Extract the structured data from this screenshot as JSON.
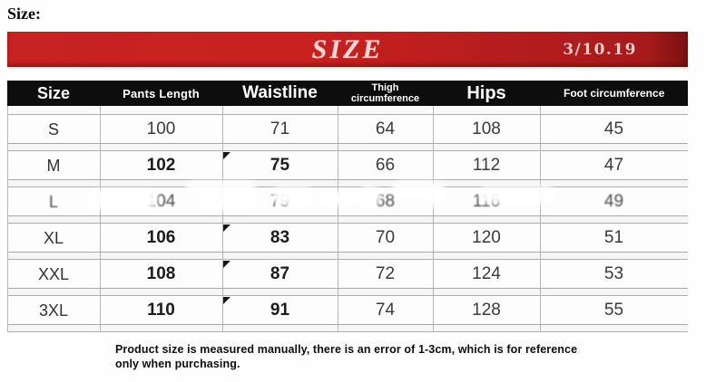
{
  "page": {
    "label": "Size:"
  },
  "banner": {
    "title": "SIZE",
    "date": "3/10.19",
    "bg_color": "#c42020",
    "title_color": "#f3d8d6"
  },
  "table": {
    "columns": [
      "Size",
      "Pants Length",
      "Waistline",
      "Thigh circumference",
      "Hips",
      "Foot circumference"
    ],
    "rows": [
      {
        "size": "S",
        "values": [
          "100",
          "71",
          "64",
          "108",
          "45"
        ],
        "emphasis": false,
        "comment_marker": false,
        "smudged": false
      },
      {
        "size": "M",
        "values": [
          "102",
          "75",
          "66",
          "112",
          "47"
        ],
        "emphasis": true,
        "comment_marker": true,
        "smudged": false
      },
      {
        "size": "L",
        "values": [
          "104",
          "79",
          "68",
          "116",
          "49"
        ],
        "emphasis": false,
        "comment_marker": false,
        "smudged": true
      },
      {
        "size": "XL",
        "values": [
          "106",
          "83",
          "70",
          "120",
          "51"
        ],
        "emphasis": true,
        "comment_marker": true,
        "smudged": false
      },
      {
        "size": "XXL",
        "values": [
          "108",
          "87",
          "72",
          "124",
          "53"
        ],
        "emphasis": true,
        "comment_marker": true,
        "smudged": false
      },
      {
        "size": "3XL",
        "values": [
          "110",
          "91",
          "74",
          "128",
          "55"
        ],
        "emphasis": true,
        "comment_marker": true,
        "smudged": false
      }
    ]
  },
  "footer": {
    "lines": [
      "Product size is measured manually, there is an error of 1-3cm, which is for reference",
      "only when purchasing."
    ]
  }
}
